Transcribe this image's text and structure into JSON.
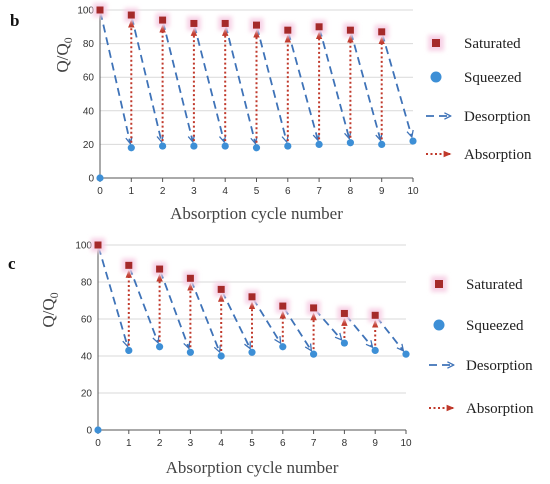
{
  "colors": {
    "saturated": "#a52a2a",
    "saturated_glow": "#f7d2e6",
    "squeezed": "#3d8fd6",
    "desorption": "#3f73b8",
    "absorption": "#c0392b",
    "grid": "#d9d9d9",
    "axis": "#555555"
  },
  "chart_data": [
    {
      "panel": "b",
      "type": "line",
      "xlabel": "Absorption cycle number",
      "ylabel_main": "Q/Q",
      "ylabel_sub": "0",
      "xlim": [
        0,
        10
      ],
      "ylim": [
        0,
        100
      ],
      "xticks": [
        0,
        1,
        2,
        3,
        4,
        5,
        6,
        7,
        8,
        9,
        10
      ],
      "yticks": [
        0,
        20,
        40,
        60,
        80,
        100
      ],
      "grid": "horizontal",
      "legend_position": "right",
      "legend": [
        "Saturated",
        "Squeezed",
        "Desorption",
        "Absorption"
      ],
      "series": [
        {
          "name": "Saturated",
          "x": [
            0,
            1,
            2,
            3,
            4,
            5,
            6,
            7,
            8,
            9
          ],
          "values": [
            100,
            97,
            94,
            92,
            92,
            91,
            88,
            90,
            88,
            87
          ]
        },
        {
          "name": "Squeezed",
          "x": [
            0,
            1,
            2,
            3,
            4,
            5,
            6,
            7,
            8,
            9,
            10
          ],
          "values": [
            0,
            18,
            19,
            19,
            19,
            18,
            19,
            20,
            21,
            20,
            22
          ]
        }
      ]
    },
    {
      "panel": "c",
      "type": "line",
      "xlabel": "Absorption cycle number",
      "ylabel_main": "Q/Q",
      "ylabel_sub": "0",
      "xlim": [
        0,
        10
      ],
      "ylim": [
        0,
        100
      ],
      "xticks": [
        0,
        1,
        2,
        3,
        4,
        5,
        6,
        7,
        8,
        9,
        10
      ],
      "yticks": [
        0,
        20,
        40,
        60,
        80,
        100
      ],
      "grid": "horizontal",
      "legend_position": "right",
      "legend": [
        "Saturated",
        "Squeezed",
        "Desorption",
        "Absorption"
      ],
      "series": [
        {
          "name": "Saturated",
          "x": [
            0,
            1,
            2,
            3,
            4,
            5,
            6,
            7,
            8,
            9
          ],
          "values": [
            100,
            89,
            87,
            82,
            76,
            72,
            67,
            66,
            63,
            62
          ]
        },
        {
          "name": "Squeezed",
          "x": [
            0,
            1,
            2,
            3,
            4,
            5,
            6,
            7,
            8,
            9,
            10
          ],
          "values": [
            0,
            43,
            45,
            42,
            40,
            42,
            45,
            41,
            47,
            43,
            41
          ]
        }
      ]
    }
  ]
}
